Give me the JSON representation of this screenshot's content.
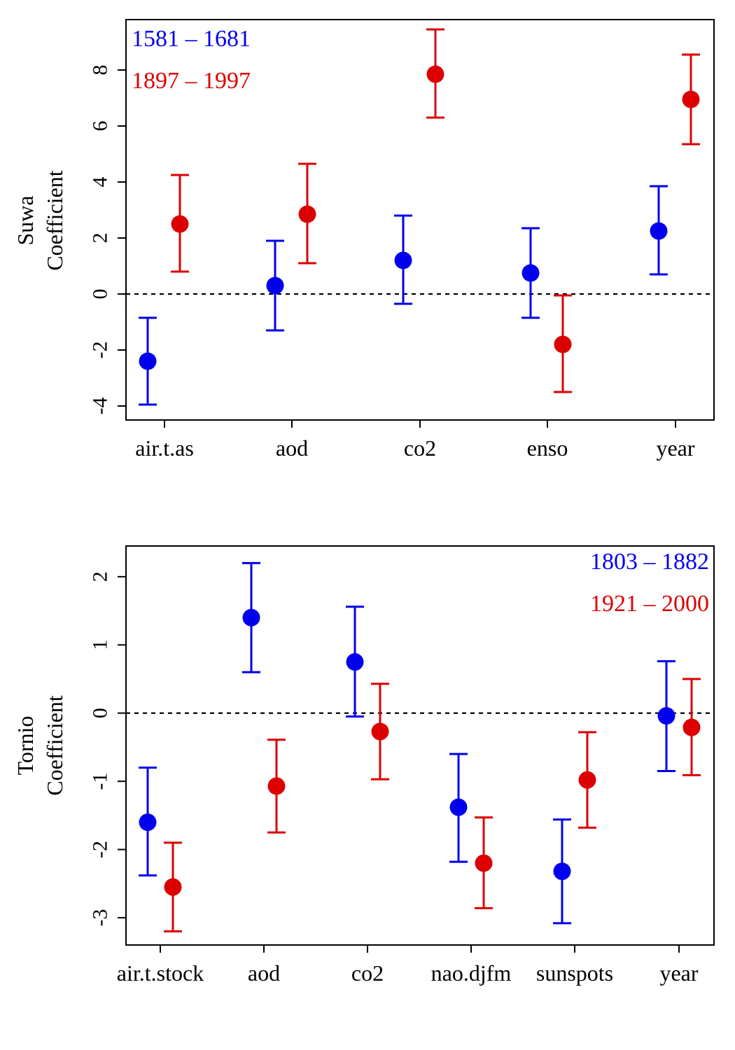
{
  "colors": {
    "series1": "#0000ee",
    "series2": "#dd0000",
    "axis": "#000000"
  },
  "chart_data": [
    {
      "type": "scatter",
      "subtype": "point-with-errorbars",
      "ylabel_lines": [
        "Suwa",
        "Coefficient"
      ],
      "ylim": [
        -4.5,
        9.8
      ],
      "yticks": [
        -4,
        -2,
        0,
        2,
        4,
        6,
        8
      ],
      "ytick_labels": [
        "-4",
        "-2",
        "0",
        "2",
        "4",
        "6",
        "8"
      ],
      "reference_line": 0,
      "grid": false,
      "legend_position": "top-left",
      "categories": [
        "air.t.as",
        "aod",
        "co2",
        "enso",
        "year"
      ],
      "series": [
        {
          "name": "1581 – 1681",
          "color": "#0000ee",
          "values": [
            -2.4,
            0.3,
            1.2,
            0.75,
            2.25
          ],
          "lower": [
            -3.95,
            -1.3,
            -0.35,
            -0.85,
            0.7
          ],
          "upper": [
            -0.85,
            1.9,
            2.8,
            2.35,
            3.85
          ]
        },
        {
          "name": "1897 – 1997",
          "color": "#dd0000",
          "values": [
            2.5,
            2.85,
            7.85,
            -1.8,
            6.95
          ],
          "lower": [
            0.8,
            1.1,
            6.3,
            -3.5,
            5.35
          ],
          "upper": [
            4.25,
            4.65,
            9.45,
            -0.05,
            8.55
          ]
        }
      ]
    },
    {
      "type": "scatter",
      "subtype": "point-with-errorbars",
      "ylabel_lines": [
        "Tornio",
        "Coefficient"
      ],
      "ylim": [
        -3.4,
        2.45
      ],
      "yticks": [
        -3,
        -2,
        -1,
        0,
        1,
        2
      ],
      "ytick_labels": [
        "-3",
        "-2",
        "-1",
        "0",
        "1",
        "2"
      ],
      "reference_line": 0,
      "grid": false,
      "legend_position": "top-right",
      "categories": [
        "air.t.stock",
        "aod",
        "co2",
        "nao.djfm",
        "sunspots",
        "year"
      ],
      "series": [
        {
          "name": "1803 – 1882",
          "color": "#0000ee",
          "values": [
            -1.6,
            1.4,
            0.75,
            -1.38,
            -2.32,
            -0.04
          ],
          "lower": [
            -2.38,
            0.6,
            -0.05,
            -2.18,
            -3.08,
            -0.85
          ],
          "upper": [
            -0.8,
            2.2,
            1.56,
            -0.6,
            -1.56,
            0.76
          ]
        },
        {
          "name": "1921 – 2000",
          "color": "#dd0000",
          "values": [
            -2.55,
            -1.07,
            -0.27,
            -2.2,
            -0.98,
            -0.21
          ],
          "lower": [
            -3.2,
            -1.75,
            -0.97,
            -2.86,
            -1.68,
            -0.91
          ],
          "upper": [
            -1.9,
            -0.39,
            0.43,
            -1.53,
            -0.28,
            0.5
          ]
        }
      ]
    }
  ]
}
